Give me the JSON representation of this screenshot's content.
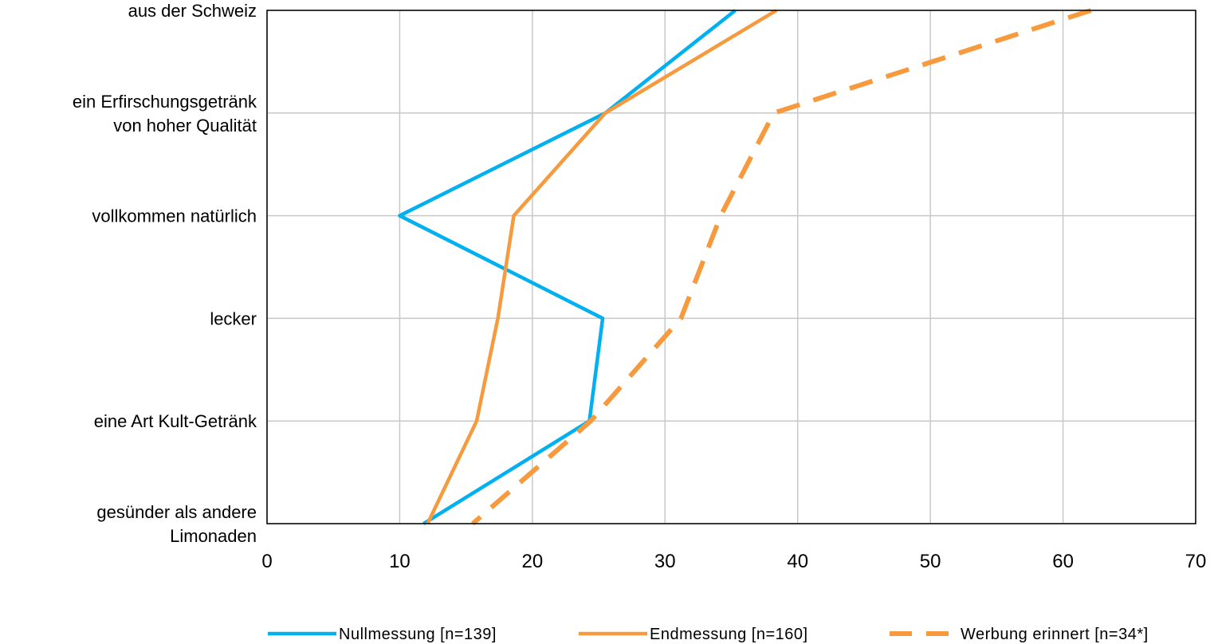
{
  "chart_data": {
    "type": "line",
    "orientation": "horizontal",
    "categories": [
      [
        "aus der Schweiz"
      ],
      [
        "ein Erfirschungsgetränk",
        "von hoher Qualität"
      ],
      [
        "vollkommen natürlich"
      ],
      [
        "lecker"
      ],
      [
        "eine Art Kult-Getränk"
      ],
      [
        "gesünder als andere",
        "Limonaden"
      ]
    ],
    "x_ticks": [
      "0",
      "10",
      "20",
      "30",
      "40",
      "50",
      "60",
      "70"
    ],
    "xlim": [
      0,
      70
    ],
    "grid": true,
    "legend_position": "bottom",
    "series": [
      {
        "name": "Nullmessung [n=139]",
        "color": "#00B0F0",
        "style": "solid",
        "values": [
          35.3,
          25.5,
          10.0,
          25.3,
          24.3,
          11.8
        ]
      },
      {
        "name": "Endmessung [n=160]",
        "color": "#F79A3E",
        "style": "solid",
        "values": [
          38.4,
          25.5,
          18.6,
          17.4,
          15.8,
          12.1
        ]
      },
      {
        "name": "Werbung erinnert [n=34*]",
        "color": "#F79A3E",
        "style": "dashed",
        "values": [
          62.1,
          38.2,
          34.2,
          31.2,
          24.4,
          15.5
        ]
      }
    ]
  }
}
